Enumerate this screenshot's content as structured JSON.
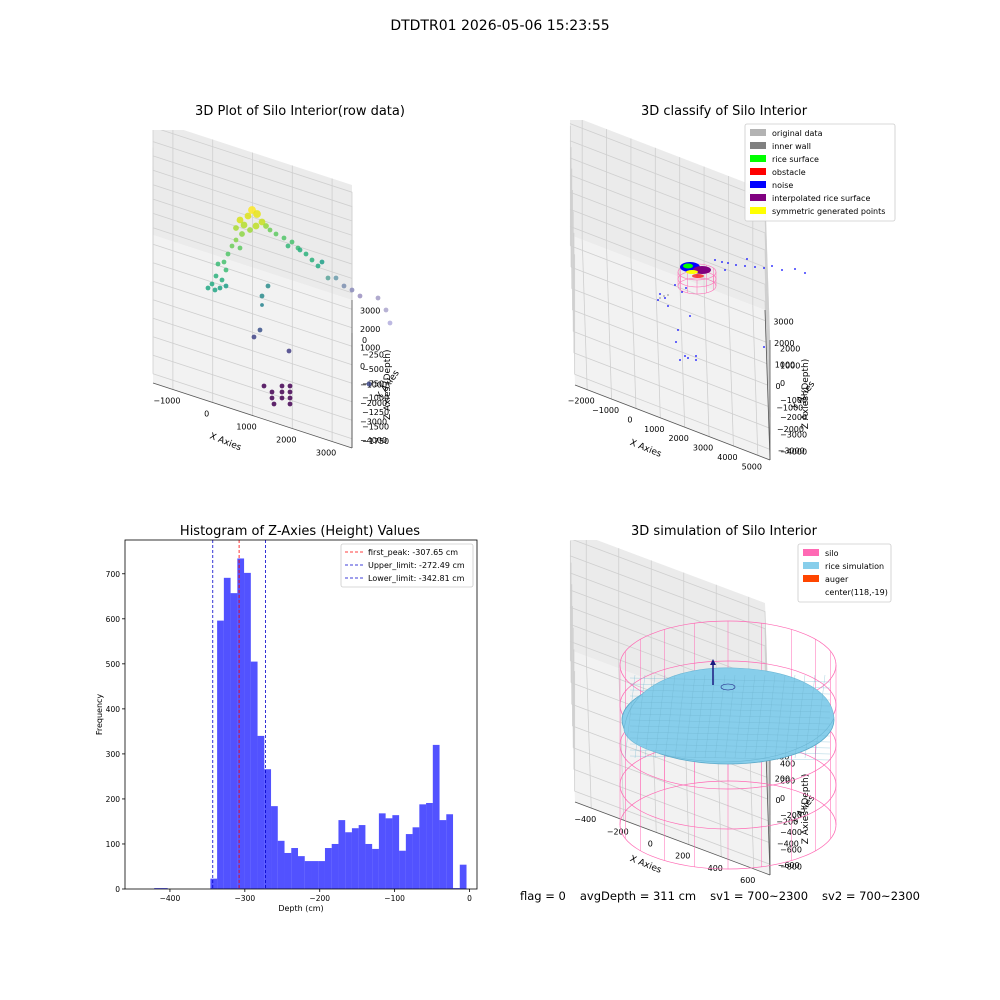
{
  "figure": {
    "title": "DTDTR01 2026-05-06 15:23:55",
    "status": {
      "flag": "flag = 0",
      "avg_depth": "avgDepth = 311 cm",
      "sv1": "sv1 = 700~2300",
      "sv2": "sv2 = 700~2300"
    }
  },
  "chart_data": [
    {
      "type": "scatter",
      "title": "3D Plot of Silo Interior(row data)",
      "xlabel": "X Axies",
      "ylabel": "Y Axies",
      "zlabel": "Z Axies (Depth)",
      "x_ticks": [
        "−1000",
        "0",
        "1000",
        "2000",
        "3000"
      ],
      "y_ticks": [
        "−4000",
        "−3000",
        "−2000",
        "−1000",
        "0",
        "1000",
        "2000",
        "3000"
      ],
      "z_ticks": [
        "0",
        "−250",
        "−500",
        "−750",
        "−1000",
        "−1250",
        "−1500",
        "−1750"
      ],
      "colormap": "viridis (colored by depth)",
      "grid": true
    },
    {
      "type": "scatter",
      "title": "3D classify of Silo Interior",
      "xlabel": "X Axies",
      "ylabel": "Y Axies",
      "zlabel": "Z Axies (Depth)",
      "x_ticks": [
        "−2000",
        "−1000",
        "0",
        "1000",
        "2000",
        "3000",
        "4000",
        "5000"
      ],
      "y_ticks": [
        "−3000",
        "−2000",
        "−1000",
        "0",
        "1000",
        "2000",
        "3000"
      ],
      "z_ticks": [
        "2000",
        "1000",
        "0",
        "−1000",
        "−2000",
        "−3000",
        "−4000"
      ],
      "legend_position": "top-right",
      "legend": [
        {
          "label": "original data",
          "color": "#b3b3b3"
        },
        {
          "label": "inner wall",
          "color": "#808080"
        },
        {
          "label": "rice surface",
          "color": "#00ff00"
        },
        {
          "label": "obstacle",
          "color": "#ff0000"
        },
        {
          "label": "noise",
          "color": "#0000ff"
        },
        {
          "label": "interpolated rice surface",
          "color": "#800080"
        },
        {
          "label": "symmetric generated points",
          "color": "#ffff00"
        }
      ],
      "grid": true
    },
    {
      "type": "bar",
      "title": "Histogram of Z-Axies (Height) Values",
      "xlabel": "Depth (cm)",
      "ylabel": "Frequency",
      "xlim": [
        -460,
        10
      ],
      "ylim": [
        0,
        775
      ],
      "x_ticks": [
        -400,
        -300,
        -200,
        -100,
        0
      ],
      "y_ticks": [
        0,
        100,
        200,
        300,
        400,
        500,
        600,
        700
      ],
      "bar_color": "#0000ff",
      "bins": [
        {
          "x0": -421,
          "x1": -412,
          "count": 2
        },
        {
          "x0": -412,
          "x1": -403,
          "count": 2
        },
        {
          "x0": -346,
          "x1": -337,
          "count": 23
        },
        {
          "x0": -337,
          "x1": -328,
          "count": 596
        },
        {
          "x0": -328,
          "x1": -319,
          "count": 691
        },
        {
          "x0": -319,
          "x1": -310,
          "count": 657
        },
        {
          "x0": -310,
          "x1": -301,
          "count": 734
        },
        {
          "x0": -301,
          "x1": -292,
          "count": 702
        },
        {
          "x0": -292,
          "x1": -283,
          "count": 505
        },
        {
          "x0": -283,
          "x1": -274,
          "count": 340
        },
        {
          "x0": -274,
          "x1": -265,
          "count": 266
        },
        {
          "x0": -265,
          "x1": -256,
          "count": 184
        },
        {
          "x0": -256,
          "x1": -247,
          "count": 107
        },
        {
          "x0": -247,
          "x1": -238,
          "count": 80
        },
        {
          "x0": -238,
          "x1": -229,
          "count": 91
        },
        {
          "x0": -229,
          "x1": -220,
          "count": 73
        },
        {
          "x0": -220,
          "x1": -211,
          "count": 62
        },
        {
          "x0": -211,
          "x1": -202,
          "count": 62
        },
        {
          "x0": -202,
          "x1": -193,
          "count": 62
        },
        {
          "x0": -193,
          "x1": -184,
          "count": 91
        },
        {
          "x0": -184,
          "x1": -175,
          "count": 100
        },
        {
          "x0": -175,
          "x1": -166,
          "count": 153
        },
        {
          "x0": -166,
          "x1": -157,
          "count": 126
        },
        {
          "x0": -157,
          "x1": -148,
          "count": 135
        },
        {
          "x0": -148,
          "x1": -139,
          "count": 142
        },
        {
          "x0": -139,
          "x1": -130,
          "count": 100
        },
        {
          "x0": -130,
          "x1": -121,
          "count": 89
        },
        {
          "x0": -121,
          "x1": -112,
          "count": 168
        },
        {
          "x0": -112,
          "x1": -103,
          "count": 157
        },
        {
          "x0": -103,
          "x1": -94,
          "count": 164
        },
        {
          "x0": -94,
          "x1": -85,
          "count": 85
        },
        {
          "x0": -85,
          "x1": -76,
          "count": 122
        },
        {
          "x0": -76,
          "x1": -67,
          "count": 137
        },
        {
          "x0": -67,
          "x1": -58,
          "count": 188
        },
        {
          "x0": -58,
          "x1": -49,
          "count": 191
        },
        {
          "x0": -49,
          "x1": -40,
          "count": 320
        },
        {
          "x0": -40,
          "x1": -31,
          "count": 153
        },
        {
          "x0": -31,
          "x1": -22,
          "count": 166
        },
        {
          "x0": -22,
          "x1": -13,
          "count": 2
        },
        {
          "x0": -13,
          "x1": -4,
          "count": 54
        }
      ],
      "vlines": [
        {
          "label": "first_peak: -307.65 cm",
          "x": -307.65,
          "color": "#ff0000"
        },
        {
          "label": "Upper_limit: -272.49 cm",
          "x": -272.49,
          "color": "#0000cc"
        },
        {
          "label": "Lower_limit: -342.81 cm",
          "x": -342.81,
          "color": "#0000cc"
        }
      ],
      "legend_position": "top-right"
    },
    {
      "type": "area",
      "title": "3D simulation of Silo Interior",
      "xlabel": "X Axies",
      "ylabel": "Y Axies",
      "zlabel": "Z Axies (Depth)",
      "x_ticks": [
        "−400",
        "−200",
        "0",
        "200",
        "400",
        "600"
      ],
      "y_ticks": [
        "−600",
        "−400",
        "−200",
        "0",
        "200",
        "400",
        "600"
      ],
      "z_ticks": [
        "400",
        "200",
        "0",
        "−200",
        "−400",
        "−600",
        "−800"
      ],
      "legend_position": "top-right",
      "legend": [
        {
          "label": "silo",
          "color": "#ff69b4"
        },
        {
          "label": "rice simulation",
          "color": "#87ceeb"
        },
        {
          "label": "auger",
          "color": "#ff4500"
        },
        {
          "label": "center(118,-19)",
          "color": "#ffffff"
        }
      ],
      "grid": true
    }
  ]
}
